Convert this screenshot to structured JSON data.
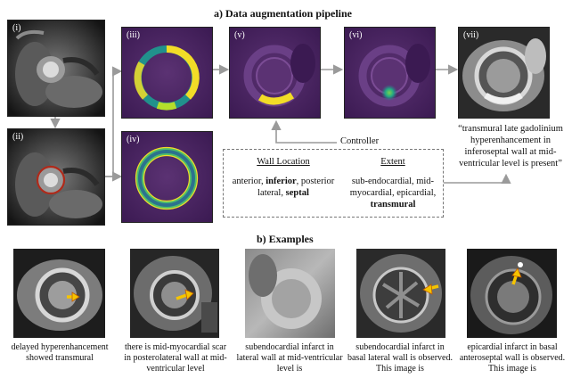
{
  "section_a_title": "a) Data augmentation pipeline",
  "section_b_title": "b) Examples",
  "panels": {
    "i": "(i)",
    "ii": "(ii)",
    "iii": "(iii)",
    "iv": "(iv)",
    "v": "(v)",
    "vi": "(vi)",
    "vii": "(vii)"
  },
  "controller_label": "Controller",
  "wall_location": {
    "heading": "Wall Location",
    "text_1": "anterior, ",
    "bold_1": "inferior",
    "text_2": ", posterior lateral, ",
    "bold_2": "septal"
  },
  "extent": {
    "heading": "Extent",
    "text": "sub-endocardial, mid-myocardial, epicardial, ",
    "bold": "transmural"
  },
  "output_caption": "“transmural late gadolinium hyperenhancement in inferoseptal wall at mid-ventricular level is present”",
  "examples": [
    {
      "caption": "delayed hyperenhancement showed transmural"
    },
    {
      "caption": "there is mid-myocardial scar in posterolateral wall at mid-ventricular level"
    },
    {
      "caption": "subendocardial infarct in lateral wall at mid-ventricular level is"
    },
    {
      "caption": "subendocardial infarct in basal lateral wall is observed. This image is"
    },
    {
      "caption": "epicardial infarct in basal anteroseptal wall is observed. This image is"
    }
  ],
  "colors": {
    "viridis_bg": "#46245c",
    "yellow": "#f2dc27",
    "teal": "#21918c",
    "green": "#4fbf6a",
    "arrow_gray": "#9a9a9a",
    "enhancement_arrow": "#f5c400",
    "contour_red": "#b02a1a"
  }
}
